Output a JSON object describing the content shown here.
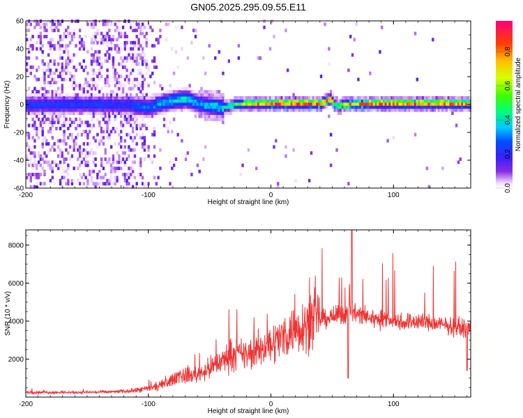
{
  "figure": {
    "title": "GN05.2025.295.09.55.E11"
  },
  "chart_data": [
    {
      "type": "heatmap",
      "title": "GN05.2025.295.09.55.E11",
      "xlabel": "Height of straight line (km)",
      "ylabel": "Frequency (Hz)",
      "xlim": [
        -200,
        163
      ],
      "ylim": [
        -60,
        60
      ],
      "xticks": [
        -200,
        -100,
        0,
        100
      ],
      "yticks": [
        -60,
        -40,
        -20,
        0,
        20,
        40,
        60
      ],
      "colorbar": {
        "label": "Normalized spectral amplitude",
        "range": [
          0,
          0.98
        ],
        "ticks": [
          0.0,
          0.2,
          0.4,
          0.6,
          0.8
        ]
      },
      "ridge": {
        "description_points_km": [
          -120,
          -110,
          -100,
          -90,
          -80,
          -70,
          -60,
          -50,
          -40,
          -30,
          -20,
          -10,
          0,
          20,
          40,
          48,
          52,
          60,
          80,
          100,
          120,
          140,
          160
        ],
        "center_freq_hz": [
          -1,
          -2,
          -3,
          0,
          2,
          3,
          0,
          -2,
          -3,
          -1,
          0,
          0,
          0,
          0,
          0,
          3,
          -2,
          -1,
          0,
          0,
          0,
          0,
          0
        ],
        "peak_amplitude": [
          0.25,
          0.3,
          0.3,
          0.35,
          0.4,
          0.45,
          0.35,
          0.4,
          0.45,
          0.6,
          0.75,
          0.85,
          0.95,
          0.98,
          0.98,
          0.9,
          0.5,
          0.8,
          0.9,
          0.95,
          0.9,
          0.9,
          0.85
        ]
      }
    },
    {
      "type": "line",
      "xlabel": "Height of straight line (km)",
      "ylabel": "SNR (10 * v/v)",
      "xlim": [
        -200,
        163
      ],
      "ylim": [
        0,
        8800
      ],
      "xticks": [
        -200,
        -100,
        0,
        100
      ],
      "yticks": [
        2000,
        4000,
        6000,
        8000
      ],
      "color": "#ee3333",
      "series": [
        {
          "name": "SNR",
          "x": [
            -200,
            -180,
            -160,
            -140,
            -120,
            -110,
            -100,
            -90,
            -80,
            -75,
            -70,
            -60,
            -50,
            -40,
            -30,
            -20,
            -10,
            0,
            10,
            20,
            30,
            40,
            50,
            60,
            65,
            70,
            80,
            90,
            100,
            110,
            120,
            130,
            140,
            150,
            160,
            163
          ],
          "y": [
            250,
            250,
            250,
            260,
            300,
            350,
            450,
            600,
            900,
            1200,
            1100,
            1200,
            1500,
            1900,
            2300,
            2200,
            2500,
            2800,
            3200,
            3600,
            3900,
            4100,
            4200,
            4300,
            4500,
            4400,
            4200,
            4100,
            4000,
            3950,
            4000,
            3900,
            3800,
            3700,
            3600,
            3650
          ]
        }
      ],
      "annotations": [
        {
          "x": 66,
          "y": 8800,
          "text": "spike"
        },
        {
          "x": 63,
          "y": 1000,
          "text": "dip"
        },
        {
          "x": 160,
          "y": 1400,
          "text": "dip"
        }
      ]
    }
  ]
}
